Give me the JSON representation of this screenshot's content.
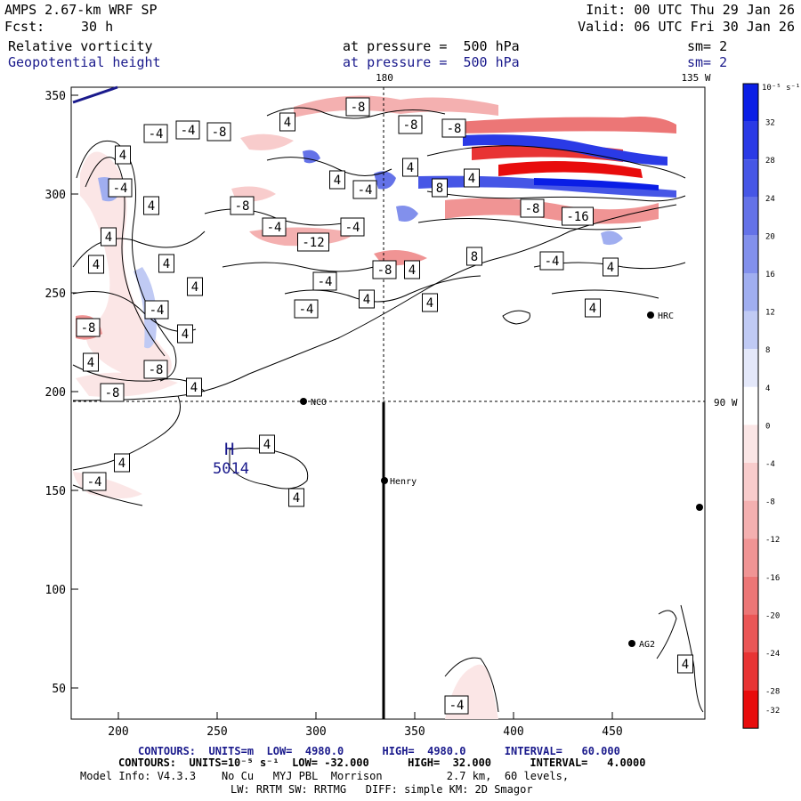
{
  "header": {
    "model": "AMPS 2.67-km WRF SP",
    "init": "Init: 00 UTC Thu 29 Jan 26",
    "fcst_label": "Fcst:",
    "fcst_value": "30 h",
    "valid": "Valid: 06 UTC Fri 30 Jan 26",
    "field1": "Relative vorticity",
    "field1_level": "at pressure =  500 hPa",
    "field1_sm": "sm= 2",
    "field2": "Geopotential height",
    "field2_level": "at pressure =  500 hPa",
    "field2_sm": "sm= 2"
  },
  "map": {
    "top_lon_180": "180",
    "top_lon_135w": "135 W",
    "right_lon_90w": "90 W",
    "x_ticks": [
      "200",
      "250",
      "300",
      "350",
      "400",
      "450"
    ],
    "y_ticks": [
      "350",
      "300",
      "250",
      "200",
      "150",
      "100",
      "50"
    ],
    "stations": [
      {
        "label": "HRC"
      },
      {
        "label": "NCO"
      },
      {
        "label": "Henry"
      },
      {
        "label": "AG2"
      },
      {
        "label": ""
      }
    ],
    "high": {
      "symbol": "H",
      "value": "5014"
    },
    "contour_labels": [
      "-4",
      "-4",
      "-8",
      "-8",
      "-8",
      "-8",
      "4",
      "4",
      "4",
      "-4",
      "4",
      "-4",
      "8",
      "4",
      "4",
      "-8",
      "-4",
      "-4",
      "-16",
      "-8",
      "-12",
      "-4",
      "4",
      "4",
      "8",
      "-4",
      "4",
      "4",
      "-8",
      "4",
      "4",
      "4",
      "-4",
      "-4",
      "4",
      "4",
      "-8",
      "4",
      "4",
      "-8",
      "4",
      "-8",
      "-4",
      "4",
      "4",
      "4",
      "-4",
      "4"
    ],
    "colors": {
      "positive": "#1f2ed8",
      "negative": "#e8141c",
      "contour": "#000000",
      "height_contour": "#1a1a8c"
    }
  },
  "colorbar": {
    "unit": "10⁻⁵ s⁻¹",
    "labels": [
      "32",
      "28",
      "24",
      "20",
      "16",
      "12",
      "8",
      "4",
      "0",
      "-4",
      "-8",
      "-12",
      "-16",
      "-20",
      "-24",
      "-28",
      "-32"
    ],
    "colors": [
      "#0a1ee6",
      "#2a3ae6",
      "#4656e6",
      "#6472e8",
      "#8290ec",
      "#a0aef0",
      "#c0caf4",
      "#e4e8fa",
      "#ffffff",
      "#fbe6e6",
      "#f8cccc",
      "#f4b0b0",
      "#f09494",
      "#ec7676",
      "#ea5656",
      "#e83434",
      "#e80c0c"
    ]
  },
  "footer": {
    "contours1": "CONTOURS:  UNITS=m  LOW=  4980.0      HIGH=  4980.0      INTERVAL=   60.000",
    "contours2": "CONTOURS:  UNITS=10⁻⁵ s⁻¹  LOW= -32.000      HIGH=  32.000      INTERVAL=   4.0000",
    "model_info": "Model Info: V4.3.3    No Cu   MYJ PBL  Morrison          2.7 km,  60 levels,",
    "physics": "LW: RRTM SW: RRTMG   DIFF: simple KM: 2D Smagor"
  }
}
